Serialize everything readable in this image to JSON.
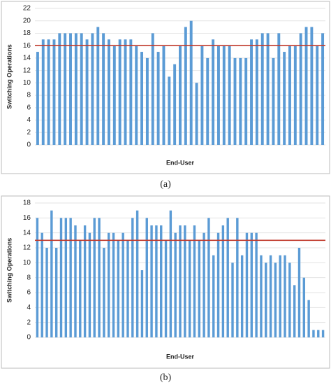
{
  "chart_data": [
    {
      "type": "bar",
      "caption": "(a)",
      "y_label": "Switching Operations",
      "x_label": "End-User",
      "categories": [
        null,
        null,
        null,
        null,
        null,
        null,
        null,
        null,
        null,
        null,
        null,
        null,
        null,
        null,
        null,
        null,
        null,
        null,
        null,
        null,
        null,
        null,
        null,
        null,
        null,
        null,
        null,
        null,
        null,
        null,
        null,
        null,
        null,
        null,
        null,
        null,
        null,
        null,
        null,
        null,
        null,
        null,
        null,
        null,
        null,
        null,
        null,
        null,
        null,
        null,
        null,
        null,
        null
      ],
      "values": [
        15,
        17,
        17,
        17,
        18,
        18,
        18,
        18,
        18,
        17,
        18,
        19,
        18,
        17,
        16,
        17,
        17,
        17,
        16,
        15,
        14,
        18,
        15,
        16,
        11,
        13,
        16,
        19,
        20,
        10,
        16,
        14,
        17,
        16,
        16,
        16,
        14,
        14,
        14,
        17,
        17,
        18,
        18,
        14,
        18,
        15,
        16,
        16,
        18,
        19,
        19,
        16,
        18
      ],
      "color": "#5b9bd5",
      "reference_line": 16,
      "reference_color": "#c0392b",
      "ylim": [
        0,
        22
      ],
      "yticks": [
        0,
        2,
        4,
        6,
        8,
        10,
        12,
        14,
        16,
        18,
        20,
        22
      ],
      "grid": true
    },
    {
      "type": "bar",
      "caption": "(b)",
      "y_label": "Switching Operations",
      "x_label": "End-User",
      "categories": [
        null,
        null,
        null,
        null,
        null,
        null,
        null,
        null,
        null,
        null,
        null,
        null,
        null,
        null,
        null,
        null,
        null,
        null,
        null,
        null,
        null,
        null,
        null,
        null,
        null,
        null,
        null,
        null,
        null,
        null,
        null,
        null,
        null,
        null,
        null,
        null,
        null,
        null,
        null,
        null,
        null,
        null,
        null,
        null,
        null,
        null,
        null,
        null,
        null,
        null,
        null,
        null,
        null,
        null,
        null,
        null,
        null,
        null,
        null,
        null,
        null
      ],
      "values": [
        16,
        14,
        12,
        17,
        12,
        16,
        16,
        16,
        15,
        13,
        15,
        14,
        16,
        16,
        12,
        14,
        14,
        13,
        14,
        13,
        16,
        17,
        9,
        16,
        15,
        15,
        15,
        13,
        17,
        14,
        15,
        15,
        13,
        15,
        13,
        14,
        16,
        11,
        14,
        15,
        16,
        10,
        16,
        11,
        14,
        14,
        14,
        11,
        10,
        11,
        10,
        11,
        11,
        10,
        7,
        12,
        8,
        5,
        1,
        1,
        1
      ],
      "color": "#5b9bd5",
      "reference_line": 13,
      "reference_color": "#c0392b",
      "ylim": [
        0,
        18
      ],
      "yticks": [
        0,
        2,
        4,
        6,
        8,
        10,
        12,
        14,
        16,
        18
      ],
      "grid": true
    }
  ]
}
